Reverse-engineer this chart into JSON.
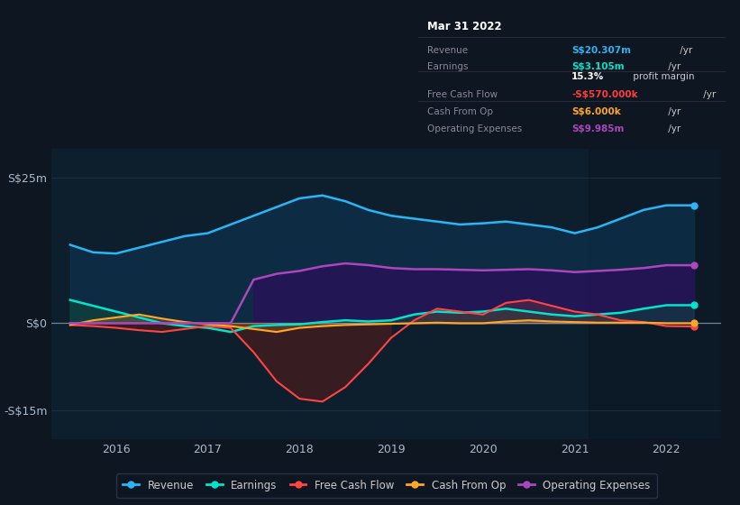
{
  "bg_color": "#0e1621",
  "plot_bg_color": "#0d1f2d",
  "highlight_bg_color": "#162433",
  "title_box": {
    "date": "Mar 31 2022",
    "rows": [
      {
        "label": "Revenue",
        "value": "S$20.307m",
        "suffix": " /yr",
        "value_color": "#29b6f6"
      },
      {
        "label": "Earnings",
        "value": "S$3.105m",
        "suffix": " /yr",
        "value_color": "#00e5cc"
      },
      {
        "label": "",
        "value": "15.3%",
        "suffix": " profit margin",
        "value_color": "#ffffff"
      },
      {
        "label": "Free Cash Flow",
        "value": "-S$570.000k",
        "suffix": " /yr",
        "value_color": "#ff3d3d"
      },
      {
        "label": "Cash From Op",
        "value": "S$6.000k",
        "suffix": " /yr",
        "value_color": "#ffa726"
      },
      {
        "label": "Operating Expenses",
        "value": "S$9.985m",
        "suffix": " /yr",
        "value_color": "#ab47bc"
      }
    ]
  },
  "yticks_labels": [
    "S$25m",
    "S$0",
    "-S$15m"
  ],
  "yticks_values": [
    25,
    0,
    -15
  ],
  "ylim": [
    -20,
    30
  ],
  "xlim": [
    2015.3,
    2022.6
  ],
  "xticks": [
    2016,
    2017,
    2018,
    2019,
    2020,
    2021,
    2022
  ],
  "x": [
    2015.5,
    2015.75,
    2016.0,
    2016.25,
    2016.5,
    2016.75,
    2017.0,
    2017.25,
    2017.5,
    2017.75,
    2018.0,
    2018.25,
    2018.5,
    2018.75,
    2019.0,
    2019.25,
    2019.5,
    2019.75,
    2020.0,
    2020.25,
    2020.5,
    2020.75,
    2021.0,
    2021.25,
    2021.5,
    2021.75,
    2022.0,
    2022.3
  ],
  "revenue": [
    13.5,
    12.2,
    12.0,
    13.0,
    14.0,
    15.0,
    15.5,
    17.0,
    18.5,
    20.0,
    21.5,
    22.0,
    21.0,
    19.5,
    18.5,
    18.0,
    17.5,
    17.0,
    17.2,
    17.5,
    17.0,
    16.5,
    15.5,
    16.5,
    18.0,
    19.5,
    20.3,
    20.3
  ],
  "earnings": [
    4.0,
    3.0,
    2.0,
    1.0,
    0.0,
    -0.5,
    -0.8,
    -1.5,
    -0.5,
    -0.3,
    -0.2,
    0.2,
    0.5,
    0.3,
    0.5,
    1.5,
    2.0,
    1.8,
    2.0,
    2.5,
    2.0,
    1.5,
    1.2,
    1.5,
    1.8,
    2.5,
    3.1,
    3.1
  ],
  "free_cash_flow": [
    -0.3,
    -0.5,
    -0.8,
    -1.2,
    -1.5,
    -1.0,
    -0.5,
    -0.8,
    -5.0,
    -10.0,
    -13.0,
    -13.5,
    -11.0,
    -7.0,
    -2.5,
    0.5,
    2.5,
    2.0,
    1.5,
    3.5,
    4.0,
    3.0,
    2.0,
    1.5,
    0.5,
    0.2,
    -0.5,
    -0.57
  ],
  "cash_from_op": [
    -0.3,
    0.5,
    1.0,
    1.5,
    0.8,
    0.2,
    -0.2,
    -0.5,
    -1.0,
    -1.5,
    -0.8,
    -0.5,
    -0.3,
    -0.2,
    -0.1,
    0.0,
    0.1,
    0.0,
    0.0,
    0.3,
    0.5,
    0.3,
    0.2,
    0.1,
    0.1,
    0.1,
    0.006,
    0.006
  ],
  "op_expenses": [
    0.0,
    0.0,
    0.0,
    0.0,
    0.0,
    0.0,
    0.0,
    0.0,
    7.5,
    8.5,
    9.0,
    9.8,
    10.3,
    10.0,
    9.5,
    9.3,
    9.3,
    9.2,
    9.1,
    9.2,
    9.3,
    9.1,
    8.8,
    9.0,
    9.2,
    9.5,
    9.985,
    9.985
  ],
  "revenue_color": "#29b6f6",
  "earnings_color": "#00e5cc",
  "fcf_color": "#ff4444",
  "cfop_color": "#ffa726",
  "opex_color": "#ab47bc",
  "revenue_fill": "#0d3a5c",
  "earnings_fill_pos": "#0d4a3a",
  "earnings_fill_neg": "#3a0d1a",
  "opex_fill": "#2d0d5c",
  "fcf_fill_pos": "#7a3a3a",
  "fcf_fill_neg": "#5a1a1a",
  "grid_color": "#1e3a4a",
  "zero_line_color": "#8899aa",
  "legend_bg": "#0e1621",
  "legend_border": "#2a3a4a"
}
